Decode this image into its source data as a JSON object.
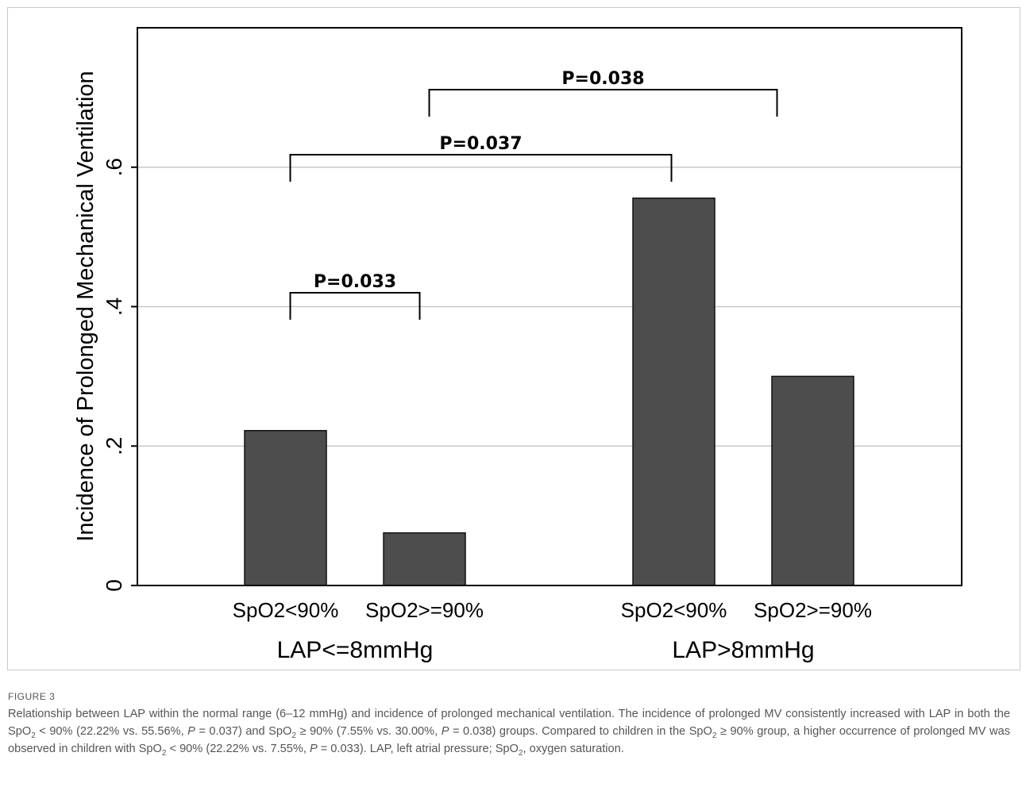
{
  "chart_data": {
    "type": "bar",
    "ylabel": "Incidence of Prolonged Mechanical Ventilation",
    "ylim": [
      0,
      0.8
    ],
    "yticks": [
      0,
      0.2,
      0.4,
      0.6
    ],
    "ytick_labels": [
      "0",
      ".2",
      ".4",
      ".6"
    ],
    "grid": true,
    "groups": [
      {
        "name": "LAP<=8mmHg",
        "bars": [
          {
            "label": "SpO2<90%",
            "value": 0.2222
          },
          {
            "label": "SpO2>=90%",
            "value": 0.0755
          }
        ]
      },
      {
        "name": "LAP>8mmHg",
        "bars": [
          {
            "label": "SpO2<90%",
            "value": 0.5556
          },
          {
            "label": "SpO2>=90%",
            "value": 0.3
          }
        ]
      }
    ],
    "annotations": [
      {
        "text": "P=0.033",
        "from": "LAP<=8mmHg / SpO2<90%",
        "to": "LAP<=8mmHg / SpO2>=90%"
      },
      {
        "text": "P=0.037",
        "from": "LAP<=8mmHg / SpO2<90%",
        "to": "LAP>8mmHg / SpO2<90%"
      },
      {
        "text": "P=0.038",
        "from": "LAP<=8mmHg / SpO2>=90%",
        "to": "LAP>8mmHg / SpO2>=90%"
      }
    ],
    "colors": {
      "bar": "#4d4d4d",
      "grid": "#c8c8c8",
      "axis": "#000000"
    }
  },
  "figure": {
    "label": "FIGURE 3",
    "caption_parts": [
      "Relationship between LAP within the normal range (6–12 mmHg) and incidence of prolonged mechanical ventilation. The incidence of prolonged MV consistently increased with LAP in both the SpO",
      "2",
      " < 90% (22.22% vs. 55.56%, ",
      "P",
      " = 0.037) and SpO",
      "2",
      " ≥ 90% (7.55% vs. 30.00%, ",
      "P",
      " = 0.038) groups. Compared to children in the SpO",
      "2",
      " ≥ 90% group, a higher occurrence of prolonged MV was observed in children with SpO",
      "2",
      " < 90% (22.22% vs. 7.55%, ",
      "P",
      " = 0.033). LAP, left atrial pressure; SpO",
      "2",
      ", oxygen saturation."
    ]
  }
}
